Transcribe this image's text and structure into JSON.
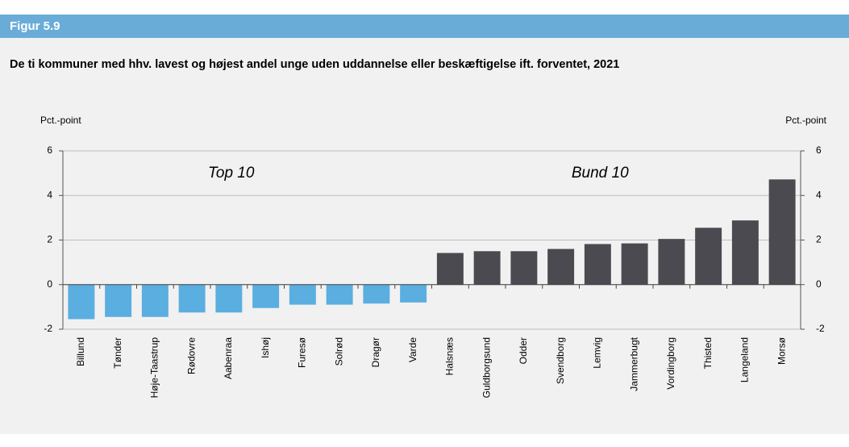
{
  "chart_data": {
    "type": "bar",
    "figure_label": "Figur 5.9",
    "title": "De ti kommuner med hhv. lavest og højest andel unge uden uddannelse eller beskæftigelse ift. forventet, 2021",
    "y_label": "Pct.-point",
    "y2_label": "Pct.-point",
    "annotations": [
      "Top 10",
      "Bund 10"
    ],
    "categories": [
      "Billund",
      "Tønder",
      "Høje-Taastrup",
      "Rødovre",
      "Aabenraa",
      "Ishøj",
      "Furesø",
      "Solrød",
      "Dragør",
      "Varde",
      "Halsnæs",
      "Guldborgsund",
      "Odder",
      "Svendborg",
      "Lemvig",
      "Jammerbugt",
      "Vordingborg",
      "Thisted",
      "Langeland",
      "Morsø"
    ],
    "values": [
      -1.55,
      -1.45,
      -1.45,
      -1.25,
      -1.25,
      -1.05,
      -0.9,
      -0.9,
      -0.85,
      -0.8,
      1.42,
      1.5,
      1.5,
      1.6,
      1.82,
      1.85,
      2.05,
      2.55,
      2.88,
      4.72
    ],
    "colors": [
      "#5aaee0",
      "#5aaee0",
      "#5aaee0",
      "#5aaee0",
      "#5aaee0",
      "#5aaee0",
      "#5aaee0",
      "#5aaee0",
      "#5aaee0",
      "#5aaee0",
      "#4a4a50",
      "#4a4a50",
      "#4a4a50",
      "#4a4a50",
      "#4a4a50",
      "#4a4a50",
      "#4a4a50",
      "#4a4a50",
      "#4a4a50",
      "#4a4a50"
    ],
    "ylim": [
      -2,
      6
    ],
    "yticks": [
      -2,
      0,
      2,
      4,
      6
    ],
    "y2lim": [
      -2,
      6
    ],
    "y2ticks": [
      -2,
      0,
      2,
      4,
      6
    ],
    "grid": true
  }
}
